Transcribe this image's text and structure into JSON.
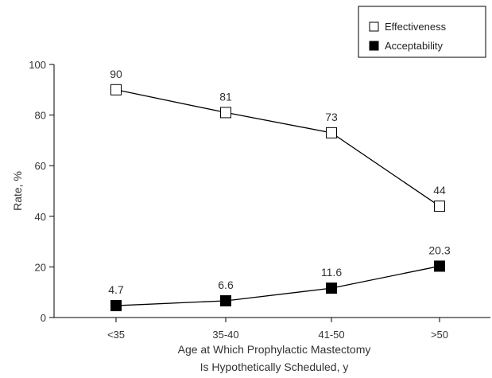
{
  "chart_data": {
    "type": "line",
    "categories": [
      "<35",
      "35-40",
      "41-50",
      ">50"
    ],
    "series": [
      {
        "name": "Effectiveness",
        "values": [
          90,
          81,
          73,
          44
        ],
        "labels": [
          "90",
          "81",
          "73",
          "44"
        ],
        "marker_fill": "#ffffff"
      },
      {
        "name": "Acceptability",
        "values": [
          4.7,
          6.6,
          11.6,
          20.3
        ],
        "labels": [
          "4.7",
          "6.6",
          "11.6",
          "20.3"
        ],
        "marker_fill": "#000000"
      }
    ],
    "ylim": [
      0,
      100
    ],
    "yticks": [
      0,
      20,
      40,
      60,
      80,
      100
    ],
    "ylabel": "Rate, %",
    "xlabel_lines": [
      "Age at Which Prophylactic Mastectomy",
      "Is Hypothetically Scheduled, y"
    ],
    "grid": false,
    "legend_position": "top-right"
  }
}
